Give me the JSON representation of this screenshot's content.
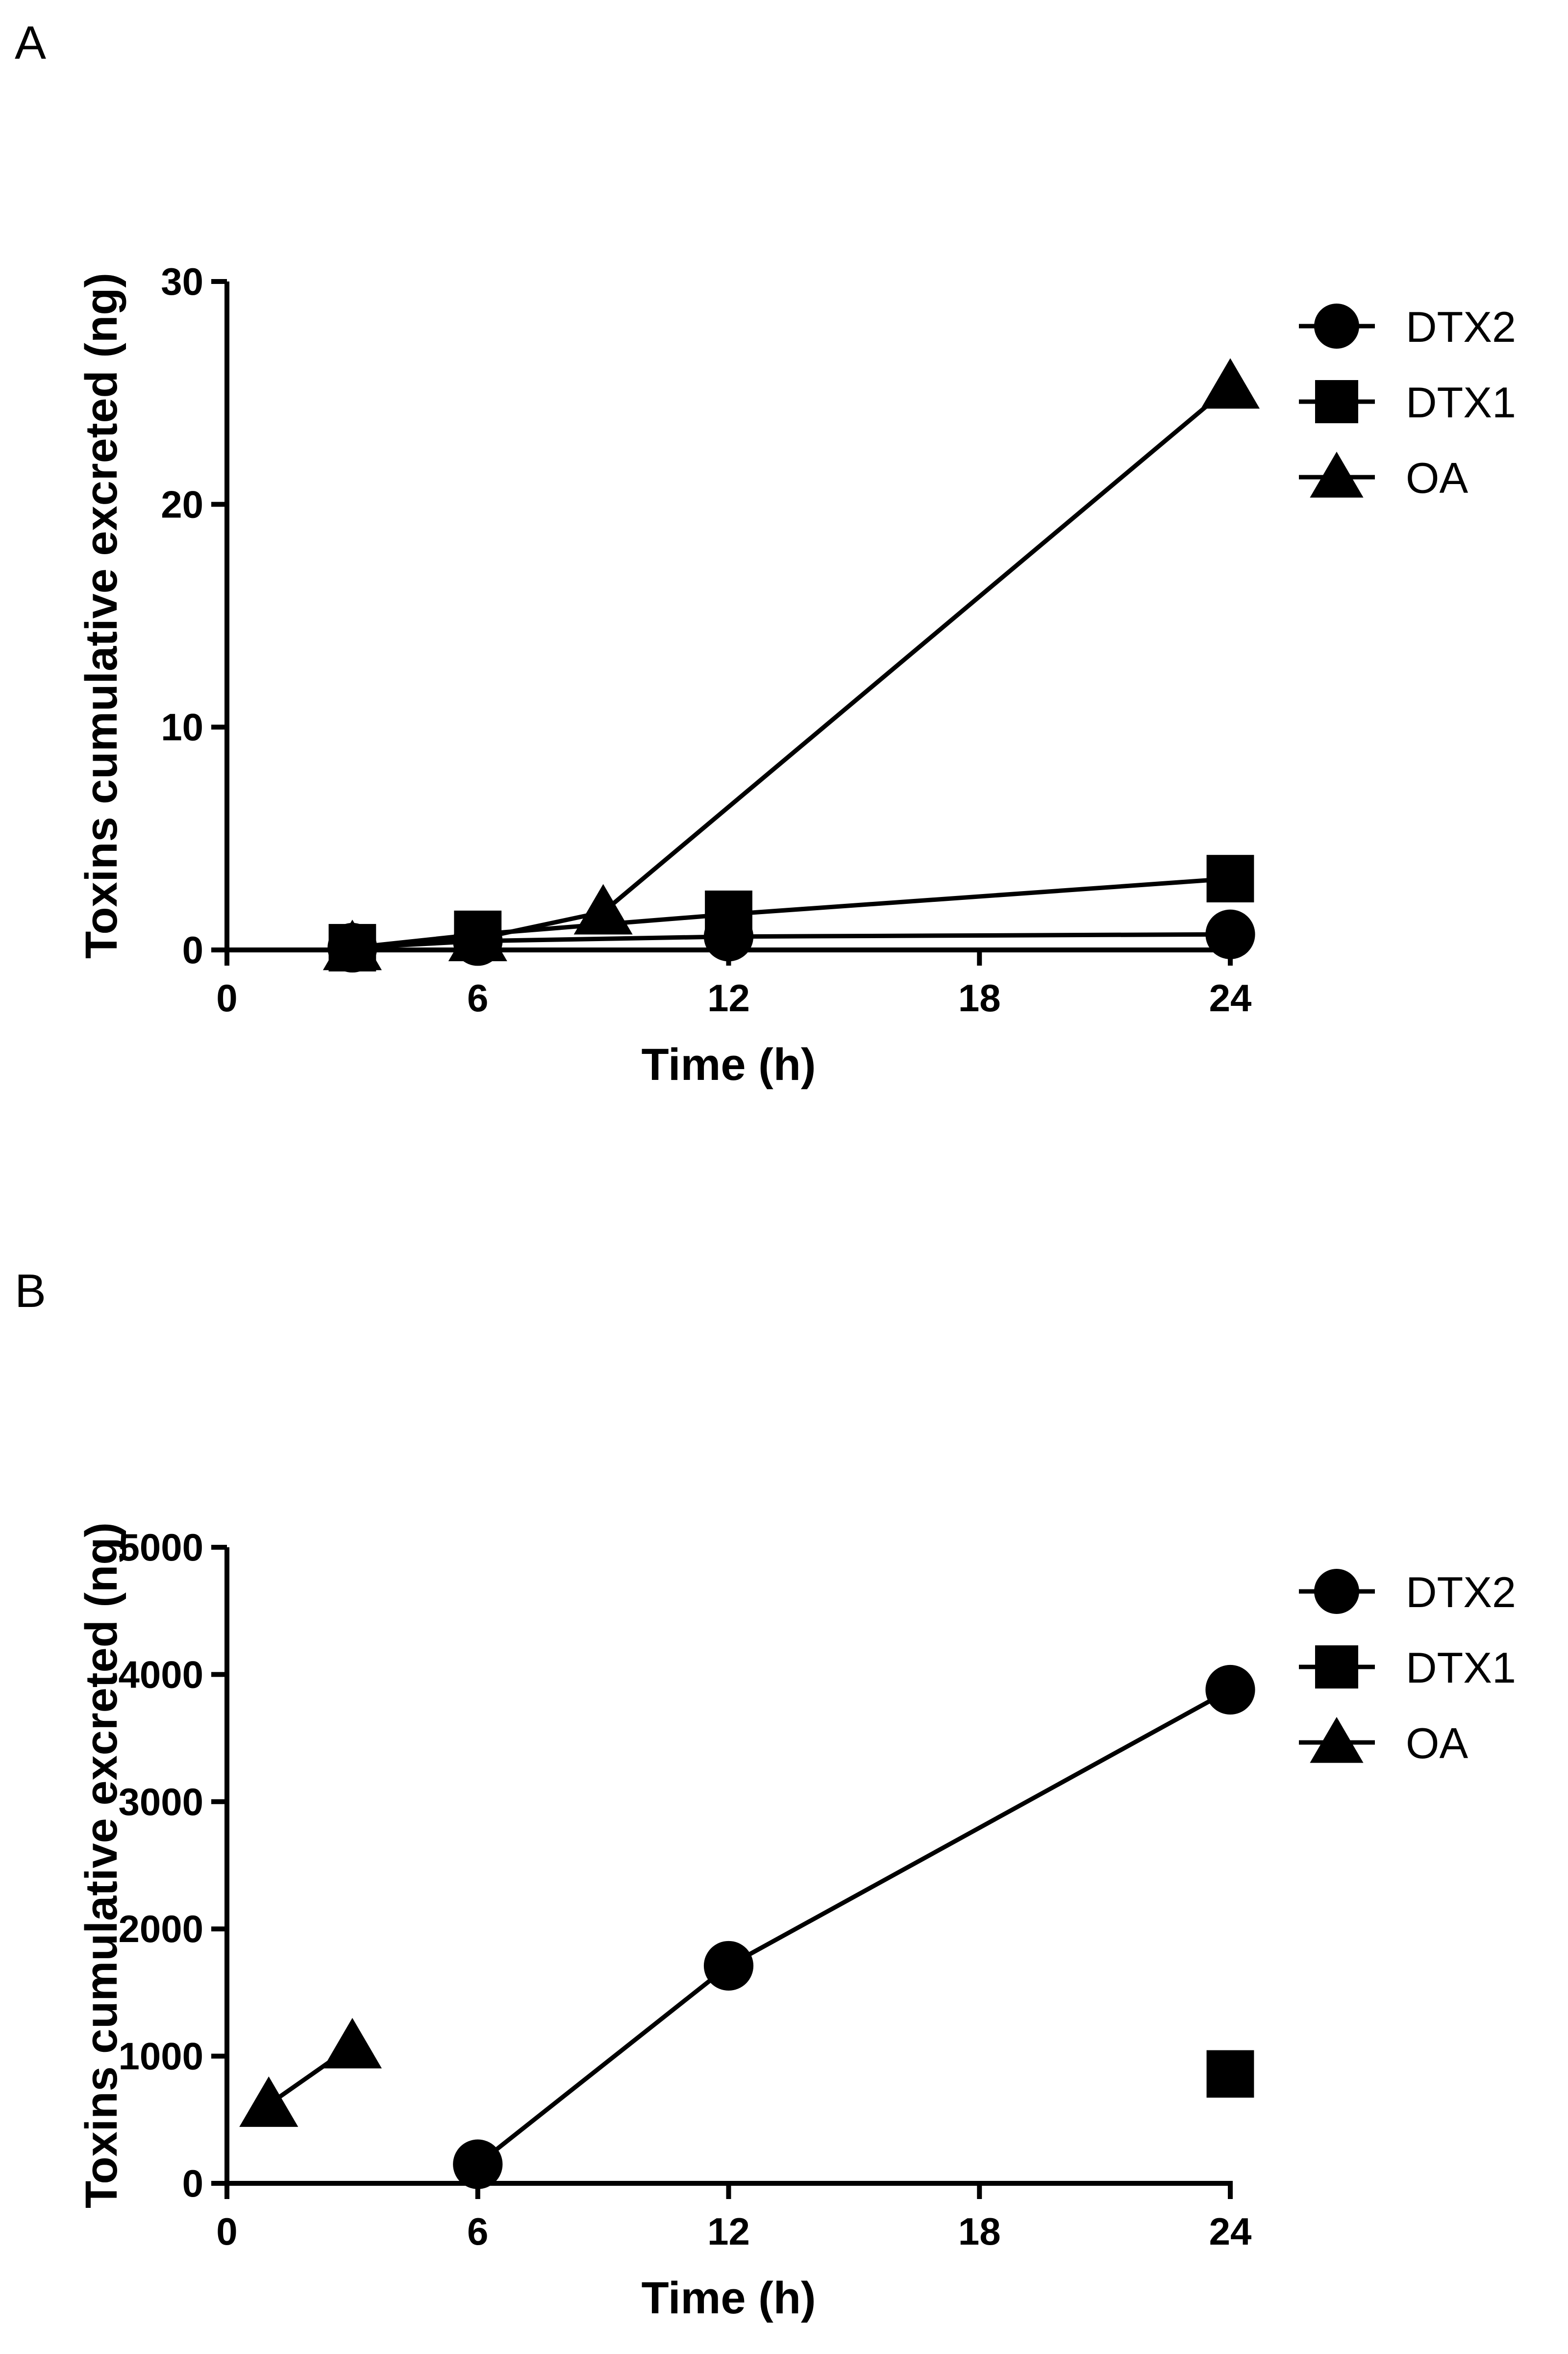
{
  "figure": {
    "colors": {
      "ink": "#000000",
      "background": "#ffffff"
    }
  },
  "chart_data": [
    {
      "panel": "A",
      "type": "line",
      "xlabel": "Time (h)",
      "ylabel": "Toxins cumulative excreted (ng)",
      "xlim": [
        0,
        24
      ],
      "ylim": [
        0,
        30
      ],
      "xticks": [
        "0",
        "6",
        "12",
        "18",
        "24"
      ],
      "yticks": [
        "0",
        "10",
        "20",
        "30"
      ],
      "grid": false,
      "legend": "right",
      "series": [
        {
          "name": "DTX2",
          "marker": "circle",
          "x": [
            3,
            6,
            12,
            24
          ],
          "y": [
            0.1,
            0.4,
            0.6,
            0.7
          ]
        },
        {
          "name": "DTX1",
          "marker": "square",
          "x": [
            3,
            6,
            12,
            24
          ],
          "y": [
            0.1,
            0.7,
            1.6,
            3.2
          ]
        },
        {
          "name": "OA",
          "marker": "triangle",
          "x": [
            3,
            6,
            9,
            24
          ],
          "y": [
            0.1,
            0.5,
            1.7,
            25.3
          ]
        }
      ]
    },
    {
      "panel": "B",
      "type": "line",
      "xlabel": "Time (h)",
      "ylabel": "Toxins cumulative excreted (ng)",
      "xlim": [
        0,
        24
      ],
      "ylim": [
        0,
        5000
      ],
      "xticks": [
        "0",
        "6",
        "12",
        "18",
        "24"
      ],
      "yticks": [
        "0",
        "1000",
        "2000",
        "3000",
        "4000",
        "5000"
      ],
      "grid": false,
      "legend": "right",
      "series": [
        {
          "name": "DTX2",
          "marker": "circle",
          "x": [
            6,
            12,
            24
          ],
          "y": [
            150,
            1710,
            3880
          ]
        },
        {
          "name": "DTX1",
          "marker": "square",
          "x": [
            24
          ],
          "y": [
            860
          ]
        },
        {
          "name": "OA",
          "marker": "triangle",
          "x": [
            1,
            3
          ],
          "y": [
            620,
            1080
          ]
        }
      ]
    }
  ]
}
